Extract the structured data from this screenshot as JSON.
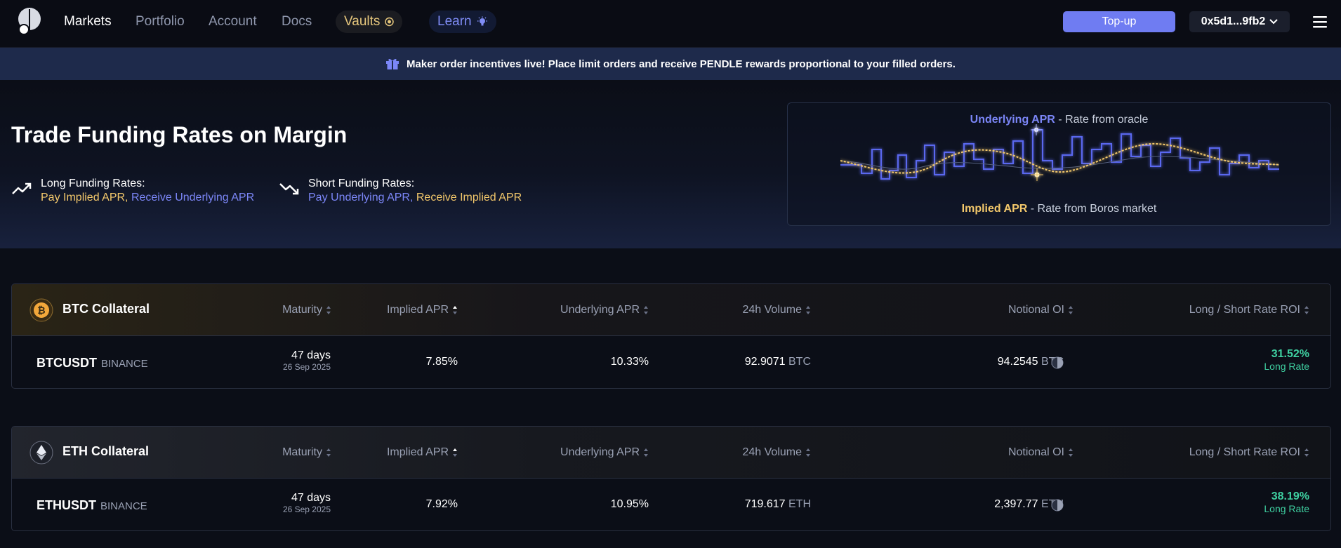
{
  "nav": {
    "items": [
      {
        "label": "Markets",
        "active": true
      },
      {
        "label": "Portfolio"
      },
      {
        "label": "Account"
      },
      {
        "label": "Docs"
      }
    ],
    "vaults_label": "Vaults",
    "learn_label": "Learn",
    "topup_label": "Top-up",
    "wallet_label": "0x5d1...9fb2"
  },
  "banner": {
    "icon": "gift-icon",
    "text": "Maker order incentives live! Place limit orders and receive PENDLE rewards proportional to your filled orders."
  },
  "hero": {
    "title": "Trade Funding Rates on Margin",
    "long": {
      "label": "Long Funding Rates:",
      "pay": "Pay Implied APR,",
      "receive": "Receive Underlying APR"
    },
    "short": {
      "label": "Short Funding Rates:",
      "pay": "Pay Underlying APR,",
      "receive": "Receive Implied APR"
    },
    "chart": {
      "top_title": "Underlying APR",
      "top_sep": " - ",
      "top_desc": "Rate from oracle",
      "bottom_title": "Implied APR",
      "bottom_sep": " - ",
      "bottom_desc": "Rate from Boros market"
    }
  },
  "columns": {
    "maturity": "Maturity",
    "implied": "Implied APR",
    "underlying": "Underlying APR",
    "volume": "24h Volume",
    "notional": "Notional OI",
    "roi": "Long / Short Rate ROI"
  },
  "markets": [
    {
      "collateral": "BTC Collateral",
      "symbol": "BTCUSDT",
      "exchange": "BINANCE",
      "maturity_days": "47 days",
      "maturity_date": "26 Sep 2025",
      "implied_apr": "7.85%",
      "underlying_apr": "10.33%",
      "volume": "92.9071",
      "volume_unit": "BTC",
      "notional": "94.2545",
      "notional_unit": "BTC",
      "roi": "31.52%",
      "roi_label": "Long Rate"
    },
    {
      "collateral": "ETH Collateral",
      "symbol": "ETHUSDT",
      "exchange": "BINANCE",
      "maturity_days": "47 days",
      "maturity_date": "26 Sep 2025",
      "implied_apr": "7.92%",
      "underlying_apr": "10.95%",
      "volume": "719.617",
      "volume_unit": "ETH",
      "notional": "2,397.77",
      "notional_unit": "ETH",
      "roi": "38.19%",
      "roi_label": "Long Rate"
    }
  ],
  "colors": {
    "accent": "#6f7cf2",
    "implied": "#f3c86b",
    "underlying": "#7b86f7",
    "roi_positive": "#3fd0a1"
  }
}
